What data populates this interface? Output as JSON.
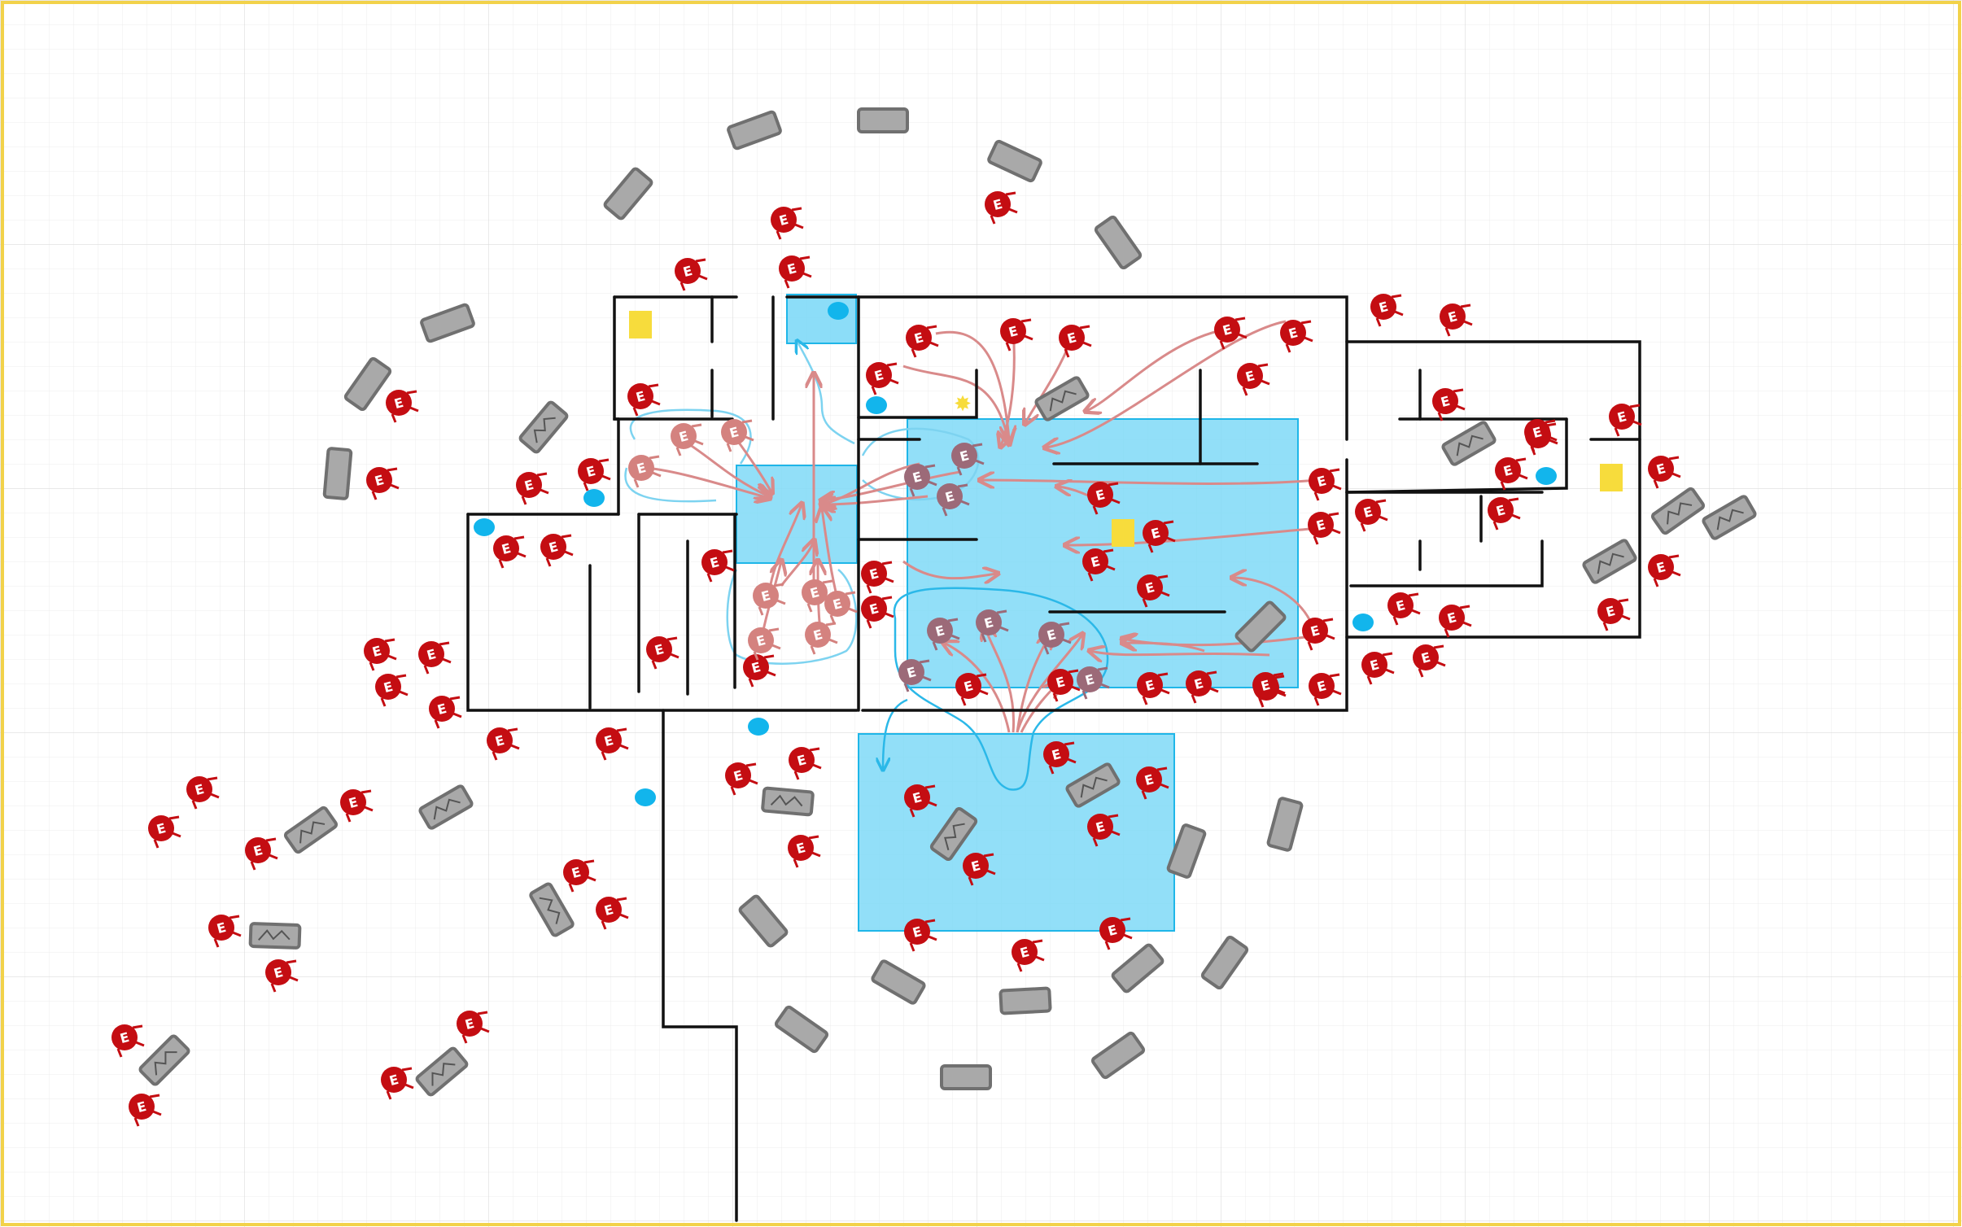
{
  "canvas": {
    "background": "#ffffff",
    "grid_color": "#e6e6e6",
    "frame_color": "#f2d24a"
  },
  "colors": {
    "wall": "#111111",
    "zone_fill": "#7fd9f7",
    "zone_stroke": "#1fb6e8",
    "enemy": "#c40d12",
    "enemy_faded": "#d4827f",
    "enemy_faded_dark": "#9c6a78",
    "path_red": "#d98a8a",
    "path_blue": "#7dd3f0",
    "vehicle_fill": "#a9a9a9",
    "vehicle_stroke": "#707070",
    "objective": "#f7dc3c",
    "waypoint": "#12b5ec"
  },
  "legend_icons": {
    "enemy": "enemy-marker-icon",
    "vehicle": "vehicle-icon",
    "wrecked_vehicle": "wrecked-vehicle-icon",
    "objective": "objective-square-icon",
    "waypoint": "waypoint-dot-icon",
    "spark": "spark-icon"
  },
  "enemy_glyph": "E"
}
